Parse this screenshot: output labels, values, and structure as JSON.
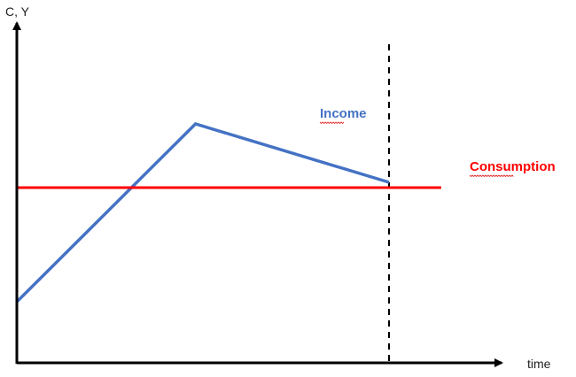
{
  "chart_data": {
    "type": "line",
    "title": "",
    "xlabel": "time",
    "ylabel": "C, Y",
    "x_ticks_shown": false,
    "y_ticks_shown": false,
    "grid": false,
    "legend": "none",
    "series": [
      {
        "name": "Income",
        "color": "#4472C4",
        "points": [
          {
            "x": 0,
            "y": 0.23
          },
          {
            "x": 0.48,
            "y": 0.9
          },
          {
            "x": 1.0,
            "y": 0.68
          }
        ]
      },
      {
        "name": "Consumption",
        "color": "#FF0000",
        "points": [
          {
            "x": 0,
            "y": 0.66
          },
          {
            "x": 1.14,
            "y": 0.66
          }
        ]
      }
    ],
    "vertical_markers": [
      {
        "x": 1.0,
        "style": "dashed",
        "color": "#000000"
      }
    ],
    "xlim": [
      0,
      1.3
    ],
    "ylim": [
      0,
      1.1
    ]
  }
}
